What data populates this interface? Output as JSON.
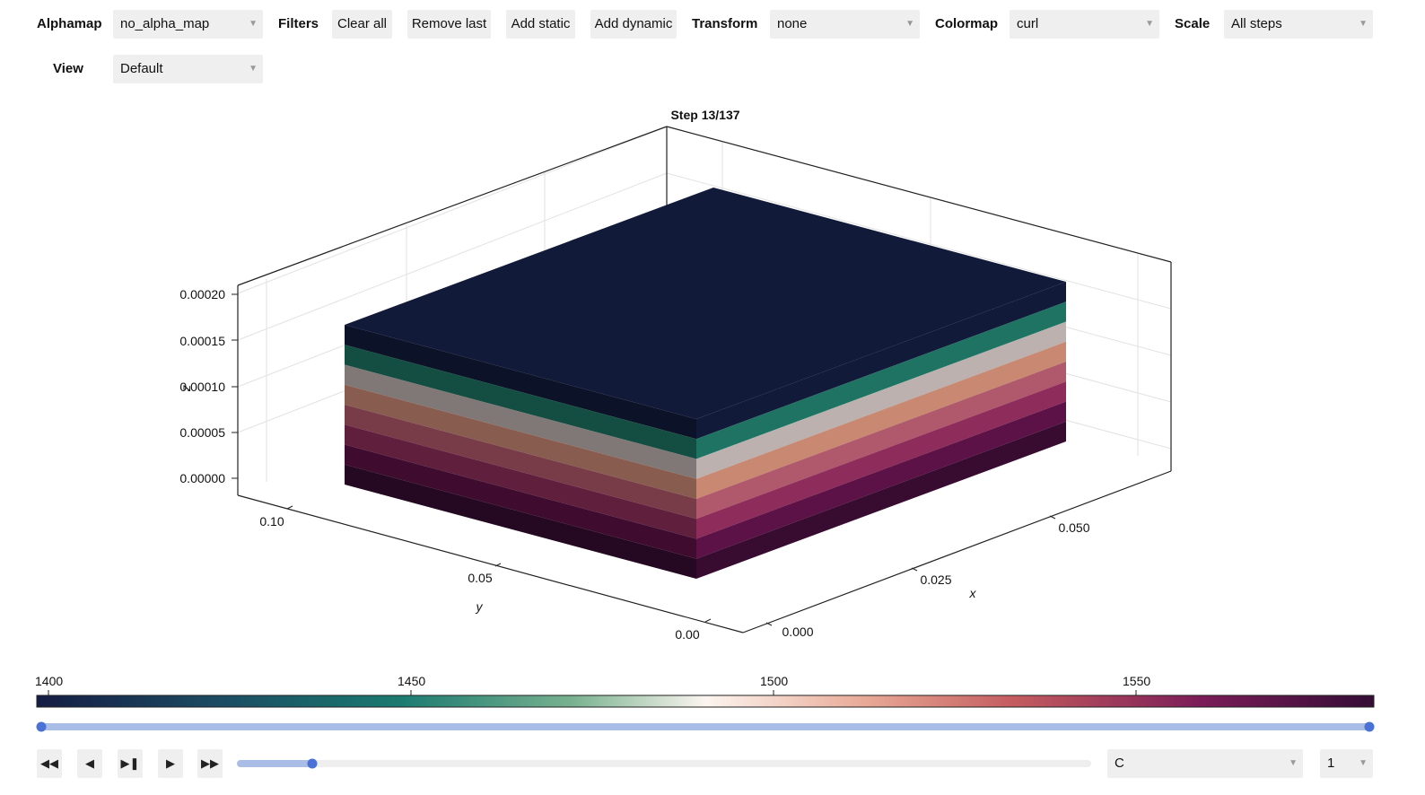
{
  "toolbar": {
    "alphamap_label": "Alphamap",
    "alphamap_value": "no_alpha_map",
    "filters_label": "Filters",
    "clear_all": "Clear all",
    "remove_last": "Remove last",
    "add_static": "Add static",
    "add_dynamic": "Add dynamic",
    "transform_label": "Transform",
    "transform_value": "none",
    "colormap_label": "Colormap",
    "colormap_value": "curl",
    "scale_label": "Scale",
    "scale_value": "All steps",
    "view_label": "View",
    "view_value": "Default"
  },
  "plot": {
    "title": "Step 13/137",
    "z_ticks": [
      "0.00000",
      "0.00005",
      "0.00010",
      "0.00015",
      "0.00020"
    ],
    "y_ticks": [
      "0.00",
      "0.05",
      "0.10"
    ],
    "x_ticks": [
      "0.000",
      "0.025",
      "0.050"
    ],
    "xlabel": "x",
    "ylabel": "y",
    "zlabel": "z",
    "layer_colors_top_to_bottom": [
      "#121a3a",
      "#1e7363",
      "#bcb1ae",
      "#c88872",
      "#b0586c",
      "#8e2d5b",
      "#5c1247",
      "#370c30"
    ]
  },
  "colorbar": {
    "ticks": [
      "1400",
      "1450",
      "1500",
      "1550"
    ],
    "min": 1400,
    "max": 1583,
    "range_low": 1400,
    "range_high": 1583
  },
  "player": {
    "step": 13,
    "total_steps": 137,
    "variable_value": "C",
    "speed_value": "1"
  }
}
